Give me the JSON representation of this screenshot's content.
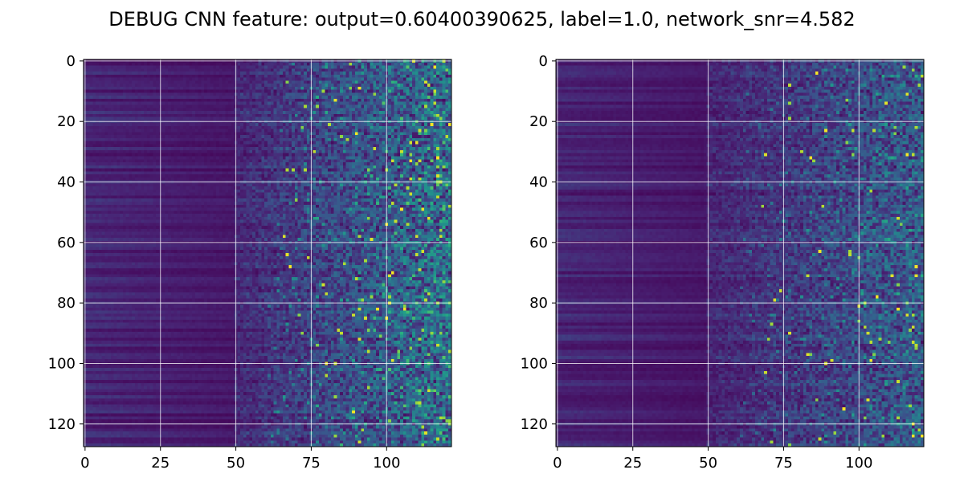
{
  "title": "DEBUG CNN feature: output=0.60400390625, label=1.0, network_snr=4.582",
  "colormap": "viridis",
  "colors": {
    "background": "#ffffff",
    "grid": "#ffffff",
    "viridis_low": "#440154",
    "viridis_mid": "#21918c",
    "viridis_high": "#fde725"
  },
  "chart_data": [
    {
      "type": "heatmap",
      "title": "",
      "xlabel": "",
      "ylabel": "",
      "grid": true,
      "shape": [
        128,
        122
      ],
      "xlim": [
        -0.5,
        121.5
      ],
      "ylim": [
        127.5,
        -0.5
      ],
      "y_inverted": true,
      "xticks": [
        0,
        25,
        50,
        75,
        100
      ],
      "xtick_labels": [
        "0",
        "25",
        "50",
        "75",
        "100"
      ],
      "yticks": [
        0,
        20,
        40,
        60,
        80,
        100,
        120
      ],
      "ytick_labels": [
        "0",
        "20",
        "40",
        "60",
        "80",
        "100",
        "120"
      ],
      "value_range": [
        0,
        1
      ],
      "pattern": "low smooth horizontally-banded values for columns 0-50, increasingly noisy and brighter speckles from column 60 to 121 with scattered bright yellow pixels around columns 80-110"
    },
    {
      "type": "heatmap",
      "title": "",
      "xlabel": "",
      "ylabel": "",
      "grid": true,
      "shape": [
        128,
        122
      ],
      "xlim": [
        -0.5,
        121.5
      ],
      "ylim": [
        127.5,
        -0.5
      ],
      "y_inverted": true,
      "xticks": [
        0,
        25,
        50,
        75,
        100
      ],
      "xtick_labels": [
        "0",
        "25",
        "50",
        "75",
        "100"
      ],
      "yticks": [
        0,
        20,
        40,
        60,
        80,
        100,
        120
      ],
      "ytick_labels": [
        "0",
        "20",
        "40",
        "60",
        "80",
        "100",
        "120"
      ],
      "value_range": [
        0,
        1
      ],
      "pattern": "low smooth horizontally-banded values for columns 0-50, noisy mostly teal speckles from column 60 to 121 with fewer bright pixels than the left panel"
    }
  ]
}
